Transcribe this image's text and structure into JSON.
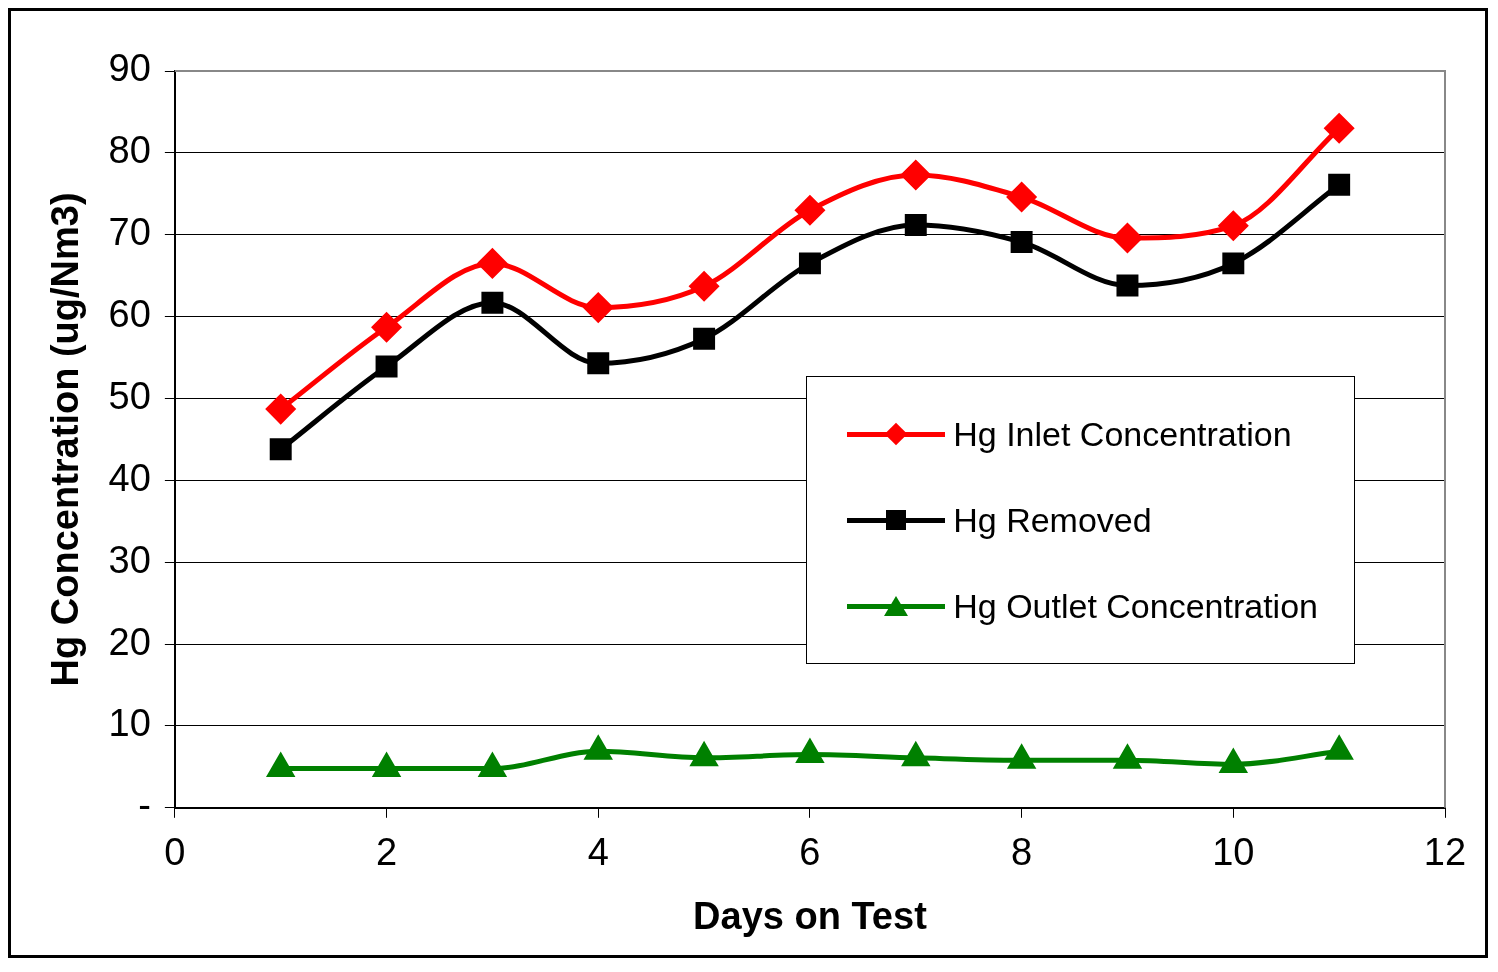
{
  "chart_data": {
    "type": "line",
    "xlabel": "Days on Test",
    "ylabel": "Hg Concentration (ug/Nm3)",
    "x": [
      1,
      2,
      3,
      4,
      5,
      6,
      7,
      8,
      9,
      10,
      11
    ],
    "xlim": [
      0,
      12
    ],
    "xticks": [
      0,
      2,
      4,
      6,
      8,
      10,
      12
    ],
    "ylim": [
      0,
      90
    ],
    "yticks": [
      {
        "value": 0,
        "label": "-"
      },
      10,
      20,
      30,
      40,
      50,
      60,
      70,
      80,
      90
    ],
    "grid": "y",
    "legend": "right",
    "line_style": "solid",
    "series": [
      {
        "name": "Hg Inlet Concentration",
        "color": "#ff0000",
        "marker": "diamond",
        "values": [
          48.7,
          58.7,
          66.5,
          61.1,
          63.7,
          73,
          77.3,
          74.6,
          69.6,
          71.1,
          83
        ]
      },
      {
        "name": "Hg Removed",
        "color": "#000000",
        "marker": "square",
        "values": [
          43.8,
          53.9,
          61.7,
          54.3,
          57.3,
          66.5,
          71.2,
          69.1,
          63.8,
          66.5,
          76.1
        ]
      },
      {
        "name": "Hg Outlet Concentration",
        "color": "#008000",
        "marker": "triangle",
        "values": [
          4.8,
          4.8,
          4.8,
          6.9,
          6.1,
          6.5,
          6.1,
          5.8,
          5.8,
          5.3,
          6.9
        ]
      }
    ]
  }
}
